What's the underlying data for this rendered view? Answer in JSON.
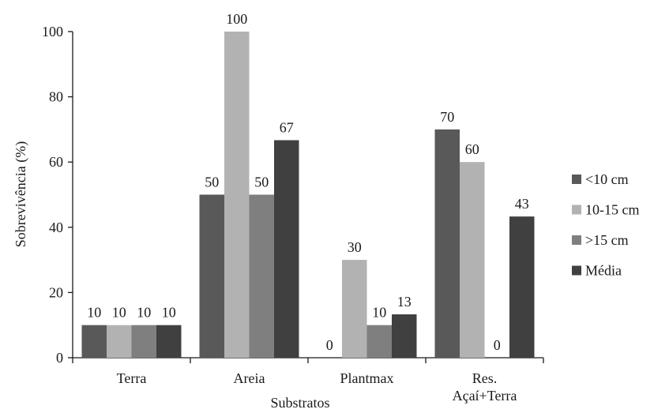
{
  "chart_data": {
    "type": "bar",
    "xlabel": "Substratos",
    "ylabel": "Sobrevivência (%)",
    "ylim": [
      0,
      100
    ],
    "yticks": [
      0,
      20,
      40,
      60,
      80,
      100
    ],
    "grid": false,
    "legend_position": "right",
    "categories": [
      {
        "lines": [
          "Terra"
        ]
      },
      {
        "lines": [
          "Areia"
        ]
      },
      {
        "lines": [
          "Plantmax"
        ]
      },
      {
        "lines": [
          "Res.",
          "Açaí+Terra"
        ]
      }
    ],
    "series": [
      {
        "name": "<10 cm",
        "color": "#595959",
        "values": [
          10,
          50,
          0,
          70
        ],
        "labels": [
          "10",
          "50",
          "0",
          "70"
        ]
      },
      {
        "name": "10-15 cm",
        "color": "#b2b2b2",
        "values": [
          10,
          100,
          30,
          60
        ],
        "labels": [
          "10",
          "100",
          "30",
          "60"
        ]
      },
      {
        "name": ">15 cm",
        "color": "#7f7f7f",
        "values": [
          10,
          50,
          10,
          0
        ],
        "labels": [
          "10",
          "50",
          "10",
          "0"
        ]
      },
      {
        "name": "Média",
        "color": "#404040",
        "values": [
          10,
          66.7,
          13.3,
          43.3
        ],
        "labels": [
          "10",
          "67",
          "13",
          "43"
        ]
      }
    ]
  }
}
